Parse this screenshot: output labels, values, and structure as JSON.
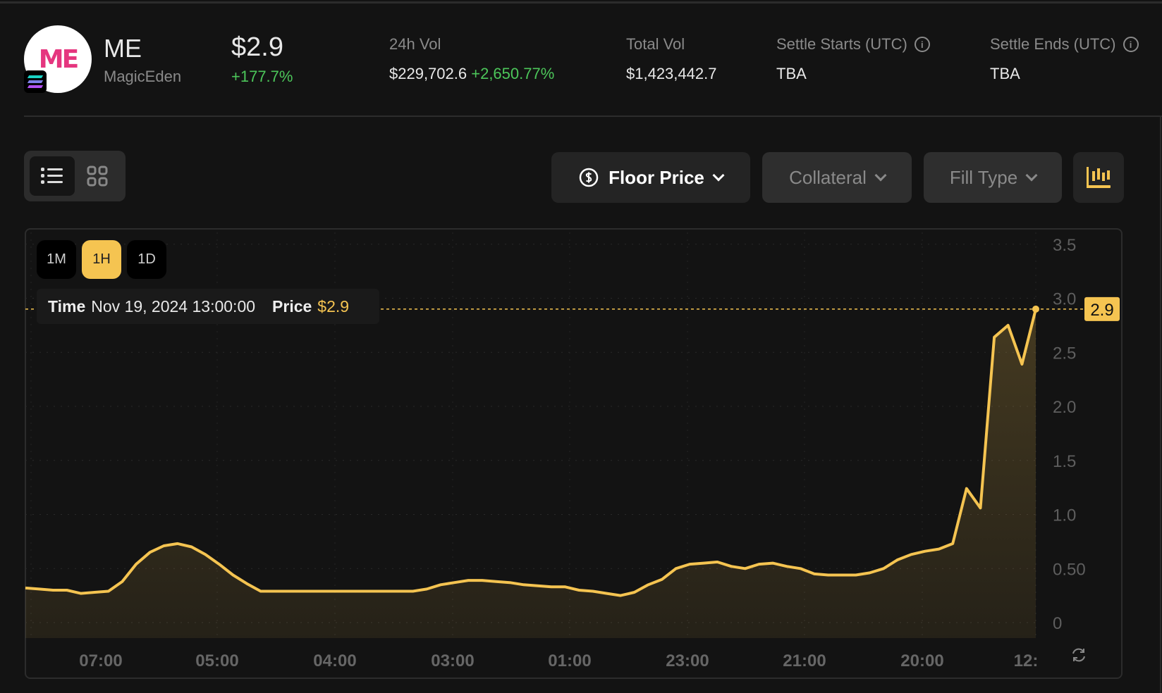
{
  "header": {
    "logo_text": "ME",
    "symbol": "ME",
    "name": "MagicEden",
    "price": "$2.9",
    "price_change": "+177.7%",
    "stats": [
      {
        "label": "24h Vol",
        "value": "$229,702.6",
        "change": "+2,650.77%"
      },
      {
        "label": "Total Vol",
        "value": "$1,423,442.7"
      },
      {
        "label": "Settle Starts (UTC)",
        "value": "TBA",
        "info": true
      },
      {
        "label": "Settle Ends (UTC)",
        "value": "TBA",
        "info": true
      }
    ]
  },
  "toolbar": {
    "view_modes": [
      "list-icon",
      "grid-icon"
    ],
    "active_view": "list",
    "floor_price": "Floor Price",
    "collateral": "Collateral",
    "fill_type": "Fill Type"
  },
  "chart": {
    "timeframes": [
      "1M",
      "1H",
      "1D"
    ],
    "active_timeframe": "1H",
    "tooltip": {
      "time_label": "Time",
      "time": "Nov 19, 2024 13:00:00",
      "price_label": "Price",
      "price": "$2.9"
    },
    "current_label": "2.9"
  },
  "colors": {
    "accent": "#f5c451",
    "positive": "#4cc65a",
    "background": "#131313"
  },
  "chart_data": {
    "type": "area",
    "x_tick_labels": [
      "07:00",
      "05:00",
      "04:00",
      "03:00",
      "01:00",
      "23:00",
      "21:00",
      "20:00",
      "12:"
    ],
    "y_tick_labels": [
      "0",
      "0.50",
      "1.0",
      "1.5",
      "2.0",
      "2.5",
      "3.0",
      "3.5"
    ],
    "y_ticks": [
      0,
      0.5,
      1.0,
      1.5,
      2.0,
      2.5,
      3.0,
      3.5
    ],
    "ylim": [
      0,
      3.5
    ],
    "grid": true,
    "current_value": 2.9,
    "values": [
      0.32,
      0.31,
      0.3,
      0.3,
      0.27,
      0.28,
      0.29,
      0.38,
      0.54,
      0.65,
      0.71,
      0.73,
      0.7,
      0.63,
      0.54,
      0.44,
      0.36,
      0.29,
      0.29,
      0.29,
      0.29,
      0.29,
      0.29,
      0.29,
      0.29,
      0.29,
      0.29,
      0.29,
      0.29,
      0.31,
      0.35,
      0.37,
      0.39,
      0.39,
      0.38,
      0.37,
      0.35,
      0.34,
      0.33,
      0.33,
      0.3,
      0.29,
      0.27,
      0.25,
      0.28,
      0.35,
      0.4,
      0.5,
      0.54,
      0.55,
      0.56,
      0.52,
      0.5,
      0.54,
      0.55,
      0.52,
      0.5,
      0.45,
      0.44,
      0.44,
      0.44,
      0.46,
      0.5,
      0.58,
      0.63,
      0.66,
      0.68,
      0.73,
      1.24,
      1.06,
      2.64,
      2.75,
      2.39,
      2.9
    ]
  }
}
